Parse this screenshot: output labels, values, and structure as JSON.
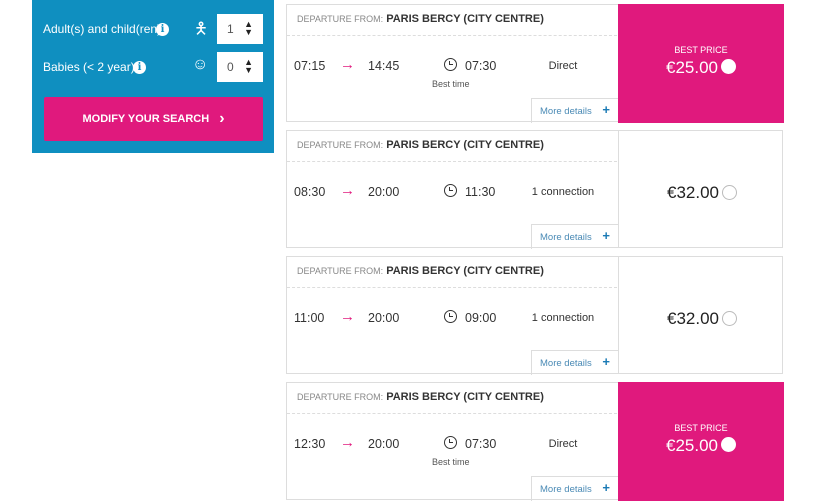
{
  "search": {
    "adults_label": "Adult(s) and child(ren)",
    "adults_value": "1",
    "babies_label": "Babies (< 2 year)",
    "babies_value": "0",
    "modify_label": "MODIFY YOUR SEARCH",
    "chevron": "›"
  },
  "departure_prefix": "DEPARTURE FROM:",
  "more_details": "More details",
  "plus": "+",
  "best_price_label": "BEST PRICE",
  "best_time_label": "Best time",
  "arrow": "→",
  "colors": {
    "accent": "#e0197d",
    "panel": "#0f8fc0"
  },
  "trips": [
    {
      "station": "PARIS BERCY (CITY CENTRE)",
      "depart": "07:15",
      "arrive": "14:45",
      "duration": "07:30",
      "connection": "Direct",
      "best_time": true,
      "price": "€25.00",
      "best_price": true
    },
    {
      "station": "PARIS BERCY (CITY CENTRE)",
      "depart": "08:30",
      "arrive": "20:00",
      "duration": "11:30",
      "connection": "1 connection",
      "best_time": false,
      "price": "€32.00",
      "best_price": false
    },
    {
      "station": "PARIS BERCY (CITY CENTRE)",
      "depart": "11:00",
      "arrive": "20:00",
      "duration": "09:00",
      "connection": "1 connection",
      "best_time": false,
      "price": "€32.00",
      "best_price": false
    },
    {
      "station": "PARIS BERCY (CITY CENTRE)",
      "depart": "12:30",
      "arrive": "20:00",
      "duration": "07:30",
      "connection": "Direct",
      "best_time": true,
      "price": "€25.00",
      "best_price": true
    }
  ]
}
